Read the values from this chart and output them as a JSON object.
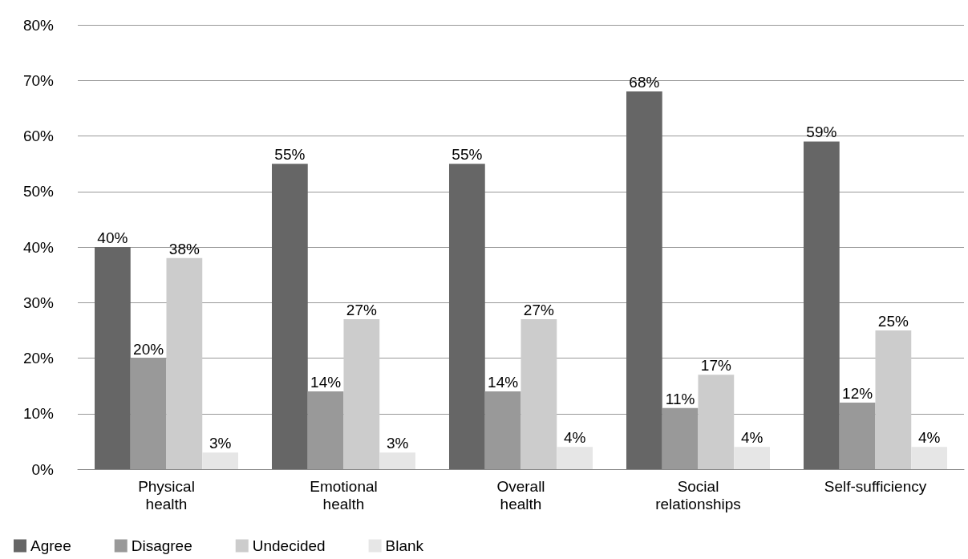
{
  "chart_data": {
    "type": "bar",
    "categories": [
      "Physical health",
      "Emotional health",
      "Overall health",
      "Social relationships",
      "Self-sufficiency"
    ],
    "series": [
      {
        "name": "Agree",
        "color": "#666666",
        "values": [
          40,
          55,
          55,
          68,
          59
        ],
        "value_labels": [
          "40%",
          "55%",
          "55%",
          "68%",
          "59%"
        ]
      },
      {
        "name": "Disagree",
        "color": "#999999",
        "values": [
          20,
          14,
          14,
          11,
          12
        ],
        "value_labels": [
          "20%",
          "14%",
          "14%",
          "11%",
          "12%"
        ]
      },
      {
        "name": "Undecided",
        "color": "#cccccc",
        "values": [
          38,
          27,
          27,
          17,
          25
        ],
        "value_labels": [
          "38%",
          "27%",
          "27%",
          "17%",
          "25%"
        ]
      },
      {
        "name": "Blank",
        "color": "#e6e6e6",
        "values": [
          3,
          3,
          4,
          4,
          4
        ],
        "value_labels": [
          "3%",
          "3%",
          "4%",
          "4%",
          "4%"
        ]
      }
    ],
    "ylim": [
      0,
      80
    ],
    "yticks": [
      {
        "value": 0,
        "label": "0%"
      },
      {
        "value": 10,
        "label": "10%"
      },
      {
        "value": 20,
        "label": "20%"
      },
      {
        "value": 30,
        "label": "30%"
      },
      {
        "value": 40,
        "label": "40%"
      },
      {
        "value": 50,
        "label": "50%"
      },
      {
        "value": 60,
        "label": "60%"
      },
      {
        "value": 70,
        "label": "70%"
      },
      {
        "value": 80,
        "label": "80%"
      }
    ],
    "grid": "y",
    "legend": "bottom left"
  }
}
